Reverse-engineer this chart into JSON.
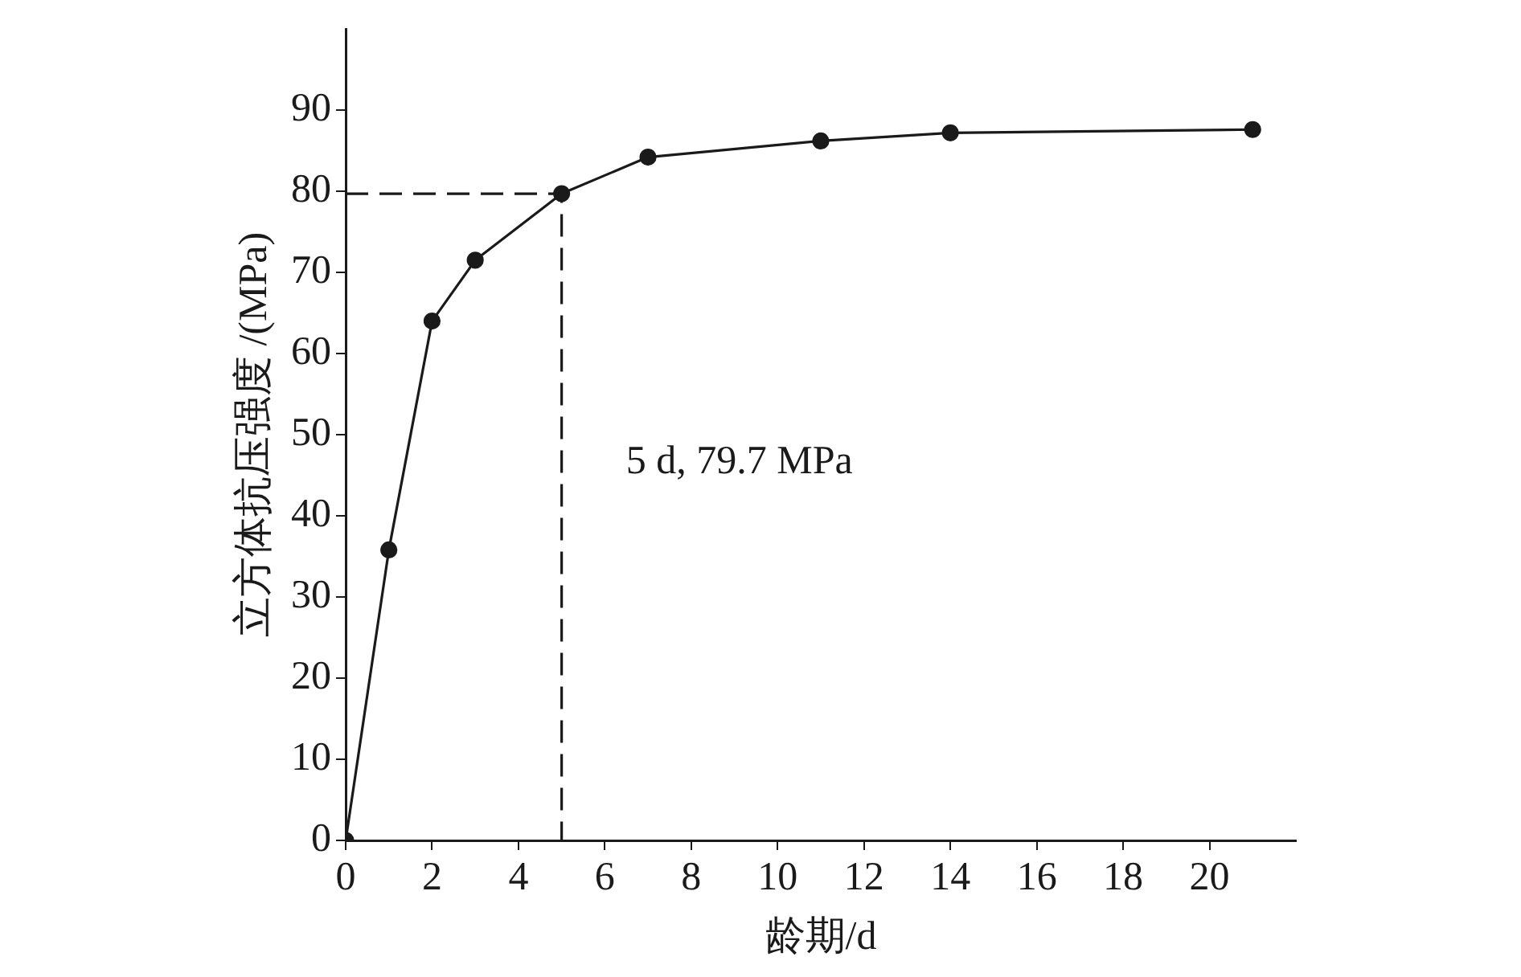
{
  "chart_data": {
    "type": "line",
    "xlabel": "龄期/d",
    "ylabel": "立方体抗压强度 /(MPa)",
    "xlim": [
      0,
      22
    ],
    "xticks": [
      0,
      2,
      4,
      6,
      8,
      10,
      12,
      14,
      16,
      18,
      20
    ],
    "ylim": [
      0,
      100
    ],
    "yticks": [
      0,
      10,
      20,
      30,
      40,
      50,
      60,
      70,
      80,
      90
    ],
    "grid": false,
    "legend": false,
    "series": [
      {
        "color": "#1a1a1a",
        "x": [
          0,
          1,
          2,
          3,
          5,
          7,
          11,
          14,
          21
        ],
        "values": [
          0,
          35.8,
          64,
          71.5,
          79.7,
          84.2,
          86.2,
          87.2,
          87.6
        ],
        "marker": "circle",
        "line_style": "solid"
      },
      {
        "color": "#1a1a1a",
        "x": [
          0,
          5,
          5
        ],
        "values": [
          79.7,
          79.7,
          0
        ],
        "marker": "none",
        "line_style": "dashed"
      }
    ],
    "annotations": [
      "5 d, 79.7 MPa"
    ]
  }
}
